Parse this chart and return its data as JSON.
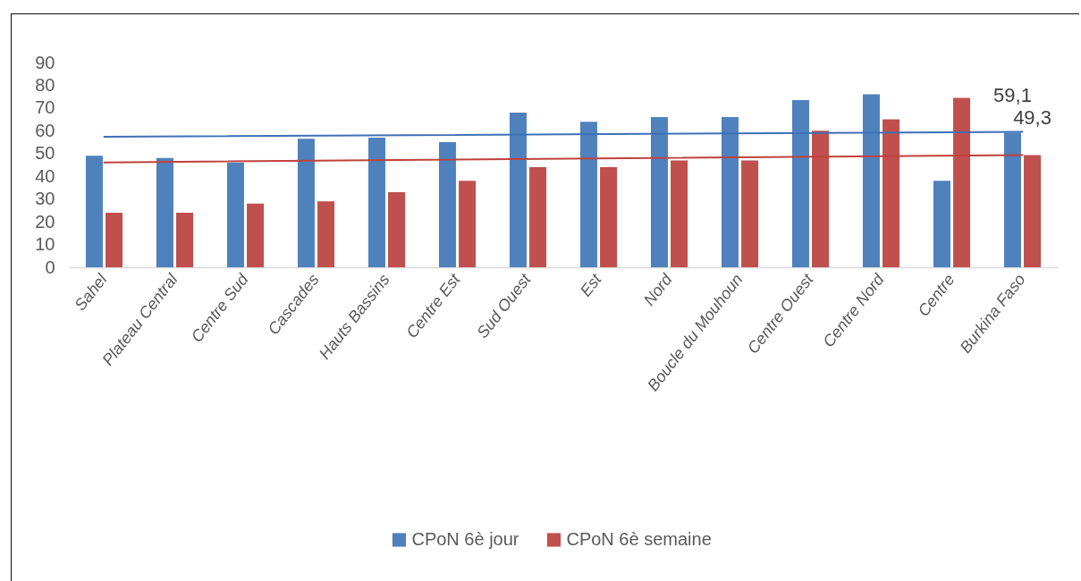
{
  "chart_data": {
    "type": "bar",
    "categories": [
      "Sahel",
      "Plateau Central",
      "Centre Sud",
      "Cascades",
      "Hauts Bassins",
      "Centre Est",
      "Sud Ouest",
      "Est",
      "Nord",
      "Boucle du Mouhoun",
      "Centre Ouest",
      "Centre Nord",
      "Centre",
      "Burkina Faso"
    ],
    "series": [
      {
        "name": "CPoN 6è jour",
        "color": "#4f81bd",
        "values": [
          49,
          48,
          46,
          56.5,
          57,
          55,
          68,
          64,
          66,
          66,
          73.5,
          76,
          38,
          59.1
        ],
        "value_labels": [
          null,
          null,
          null,
          null,
          null,
          null,
          null,
          null,
          null,
          null,
          null,
          null,
          null,
          "59,1"
        ]
      },
      {
        "name": "CPoN 6è semaine",
        "color": "#c0504d",
        "values": [
          24,
          24,
          28,
          29,
          33,
          38,
          44,
          44,
          47,
          47,
          60,
          65,
          74.5,
          49.3
        ],
        "value_labels": [
          null,
          null,
          null,
          null,
          null,
          null,
          null,
          null,
          null,
          null,
          null,
          null,
          null,
          "49,3"
        ]
      },
      {
        "type": "line",
        "color": "#3d70b6",
        "x": [
          "Sahel",
          "Burkina Faso"
        ],
        "values": [
          57.4,
          59.5
        ]
      },
      {
        "type": "line",
        "color": "#c0413b",
        "x": [
          "Sahel",
          "Burkina Faso"
        ],
        "values": [
          46.1,
          49.3
        ]
      }
    ],
    "ylim": [
      0,
      90
    ],
    "yticks": [
      0,
      10,
      20,
      30,
      40,
      50,
      60,
      70,
      80,
      90
    ],
    "grid": false,
    "legend": "bottom"
  }
}
